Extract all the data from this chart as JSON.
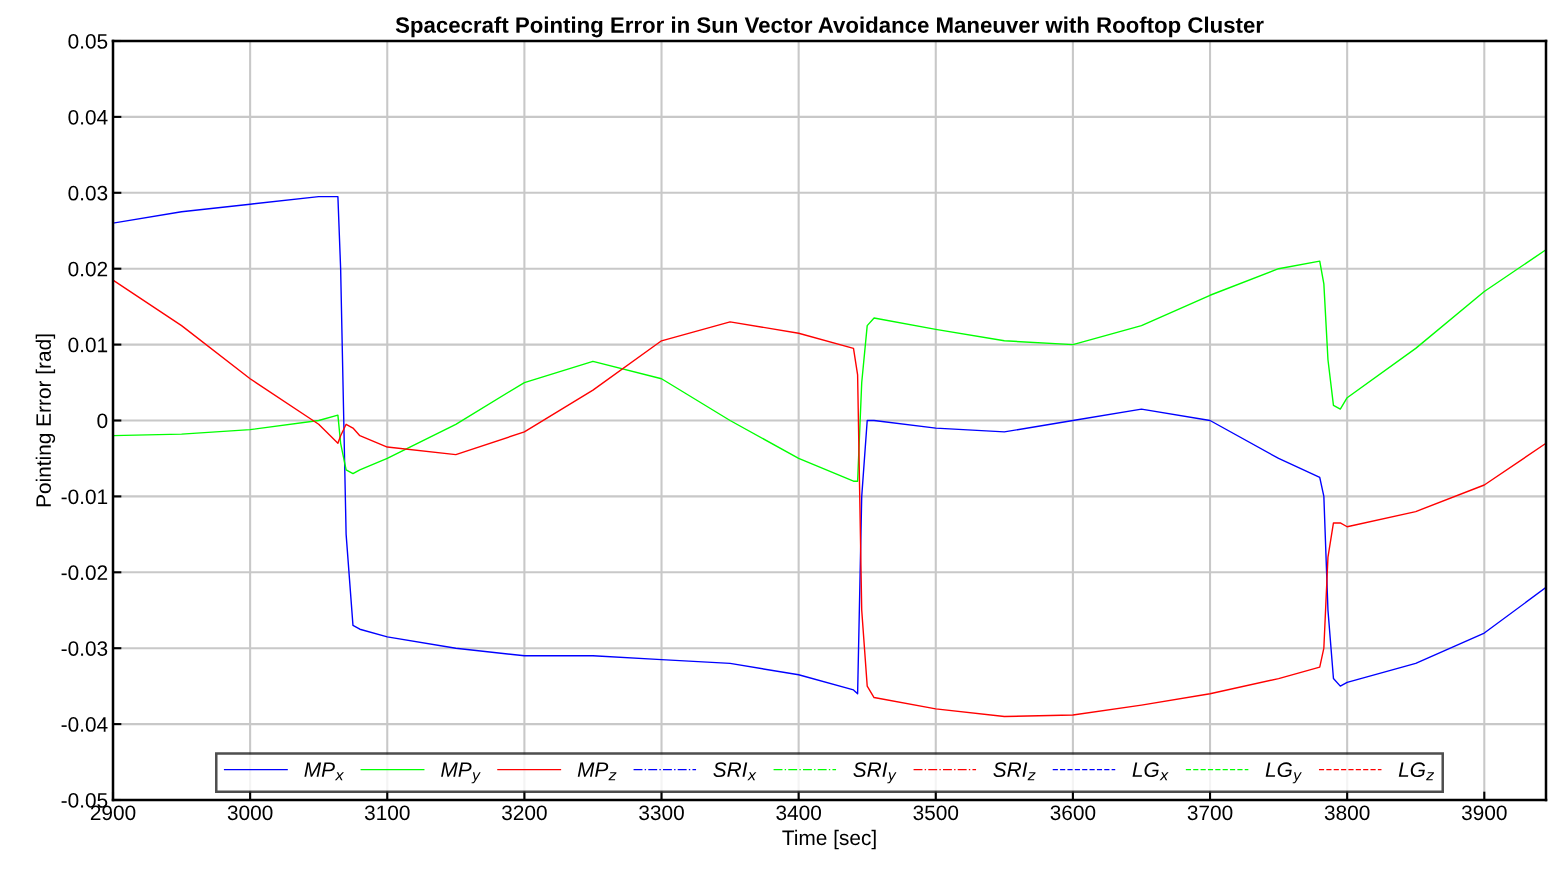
{
  "chart_data": {
    "type": "line",
    "title": "Spacecraft Pointing Error in Sun Vector Avoidance Maneuver with Rooftop Cluster",
    "xlabel": "Time [sec]",
    "ylabel": "Pointing Error [rad]",
    "x": [
      2900,
      2950,
      3000,
      3050,
      3064,
      3066,
      3070,
      3075,
      3080,
      3100,
      3150,
      3200,
      3250,
      3300,
      3350,
      3400,
      3440,
      3443,
      3446,
      3450,
      3455,
      3500,
      3550,
      3600,
      3650,
      3700,
      3750,
      3780,
      3783,
      3786,
      3790,
      3795,
      3800,
      3850,
      3900,
      3945
    ],
    "xlim": [
      2900,
      3945
    ],
    "xticks": [
      2900,
      3000,
      3100,
      3200,
      3300,
      3400,
      3500,
      3600,
      3700,
      3800,
      3900
    ],
    "ylim": [
      -0.05,
      0.05
    ],
    "yticks": [
      0.05,
      0.04,
      0.03,
      0.02,
      0.01,
      0,
      -0.01,
      -0.02,
      -0.03,
      -0.04,
      -0.05
    ],
    "grid": true,
    "legend": "bottom",
    "marker": "none",
    "series": [
      {
        "name": "MP$_{x}$",
        "color": "#0000ff",
        "line_style": "solid",
        "values": [
          0.026,
          0.0275,
          0.0285,
          0.0295,
          0.0295,
          0.02,
          -0.015,
          -0.027,
          -0.0275,
          -0.0285,
          -0.03,
          -0.031,
          -0.031,
          -0.0315,
          -0.032,
          -0.0335,
          -0.0355,
          -0.036,
          -0.01,
          0.0,
          0.0,
          -0.001,
          -0.0015,
          0.0,
          0.0015,
          0.0,
          -0.005,
          -0.0075,
          -0.01,
          -0.025,
          -0.034,
          -0.035,
          -0.0345,
          -0.032,
          -0.028,
          -0.022
        ]
      },
      {
        "name": "MP$_{y}$",
        "color": "#00ff00",
        "line_style": "solid",
        "values": [
          -0.002,
          -0.0018,
          -0.0012,
          0.0,
          0.0007,
          -0.003,
          -0.0065,
          -0.007,
          -0.0065,
          -0.005,
          -0.0005,
          0.005,
          0.0078,
          0.0055,
          0.0,
          -0.005,
          -0.008,
          -0.008,
          0.005,
          0.0125,
          0.0135,
          0.012,
          0.0105,
          0.01,
          0.0125,
          0.0165,
          0.02,
          0.021,
          0.018,
          0.008,
          0.002,
          0.0015,
          0.003,
          0.0095,
          0.017,
          0.0225
        ]
      },
      {
        "name": "MP$_{z}$",
        "color": "#ff0000",
        "line_style": "solid",
        "values": [
          0.0185,
          0.0125,
          0.0055,
          -0.0005,
          -0.003,
          -0.002,
          -0.0005,
          -0.001,
          -0.002,
          -0.0035,
          -0.0045,
          -0.0015,
          0.004,
          0.0105,
          0.013,
          0.0115,
          0.0095,
          0.006,
          -0.025,
          -0.035,
          -0.0365,
          -0.038,
          -0.039,
          -0.0388,
          -0.0375,
          -0.036,
          -0.034,
          -0.0325,
          -0.03,
          -0.018,
          -0.0135,
          -0.0135,
          -0.014,
          -0.012,
          -0.0085,
          -0.003
        ]
      },
      {
        "name": "SRI$_{x}$",
        "color": "#0000ff",
        "line_style": "dashdot",
        "values": [
          null,
          null,
          null,
          null,
          null,
          null,
          null,
          null,
          null,
          null,
          null,
          null,
          null,
          null,
          null,
          null,
          null,
          null,
          null,
          null,
          null,
          null,
          null,
          null,
          null,
          null,
          null,
          null,
          null,
          null,
          null,
          null,
          null,
          null,
          null,
          null
        ]
      },
      {
        "name": "SRI$_{y}$",
        "color": "#00ff00",
        "line_style": "dashdot",
        "values": [
          null,
          null,
          null,
          null,
          null,
          null,
          null,
          null,
          null,
          null,
          null,
          null,
          null,
          null,
          null,
          null,
          null,
          null,
          null,
          null,
          null,
          null,
          null,
          null,
          null,
          null,
          null,
          null,
          null,
          null,
          null,
          null,
          null,
          null,
          null,
          null
        ]
      },
      {
        "name": "SRI$_{z}$",
        "color": "#ff0000",
        "line_style": "dashdot",
        "values": [
          null,
          null,
          null,
          null,
          null,
          null,
          null,
          null,
          null,
          null,
          null,
          null,
          null,
          null,
          null,
          null,
          null,
          null,
          null,
          null,
          null,
          null,
          null,
          null,
          null,
          null,
          null,
          null,
          null,
          null,
          null,
          null,
          null,
          null,
          null,
          null
        ]
      },
      {
        "name": "LG$_{x}$",
        "color": "#0000ff",
        "line_style": "dashed",
        "values": [
          null,
          null,
          null,
          null,
          null,
          null,
          null,
          null,
          null,
          null,
          null,
          null,
          null,
          null,
          null,
          null,
          null,
          null,
          null,
          null,
          null,
          null,
          null,
          null,
          null,
          null,
          null,
          null,
          null,
          null,
          null,
          null,
          null,
          null,
          null,
          null
        ]
      },
      {
        "name": "LG$_{y}$",
        "color": "#00ff00",
        "line_style": "dashed",
        "values": [
          null,
          null,
          null,
          null,
          null,
          null,
          null,
          null,
          null,
          null,
          null,
          null,
          null,
          null,
          null,
          null,
          null,
          null,
          null,
          null,
          null,
          null,
          null,
          null,
          null,
          null,
          null,
          null,
          null,
          null,
          null,
          null,
          null,
          null,
          null,
          null
        ]
      },
      {
        "name": "LG$_{z}$",
        "color": "#ff0000",
        "line_style": "dashed",
        "values": [
          null,
          null,
          null,
          null,
          null,
          null,
          null,
          null,
          null,
          null,
          null,
          null,
          null,
          null,
          null,
          null,
          null,
          null,
          null,
          null,
          null,
          null,
          null,
          null,
          null,
          null,
          null,
          null,
          null,
          null,
          null,
          null,
          null,
          null,
          null,
          null
        ]
      }
    ]
  }
}
